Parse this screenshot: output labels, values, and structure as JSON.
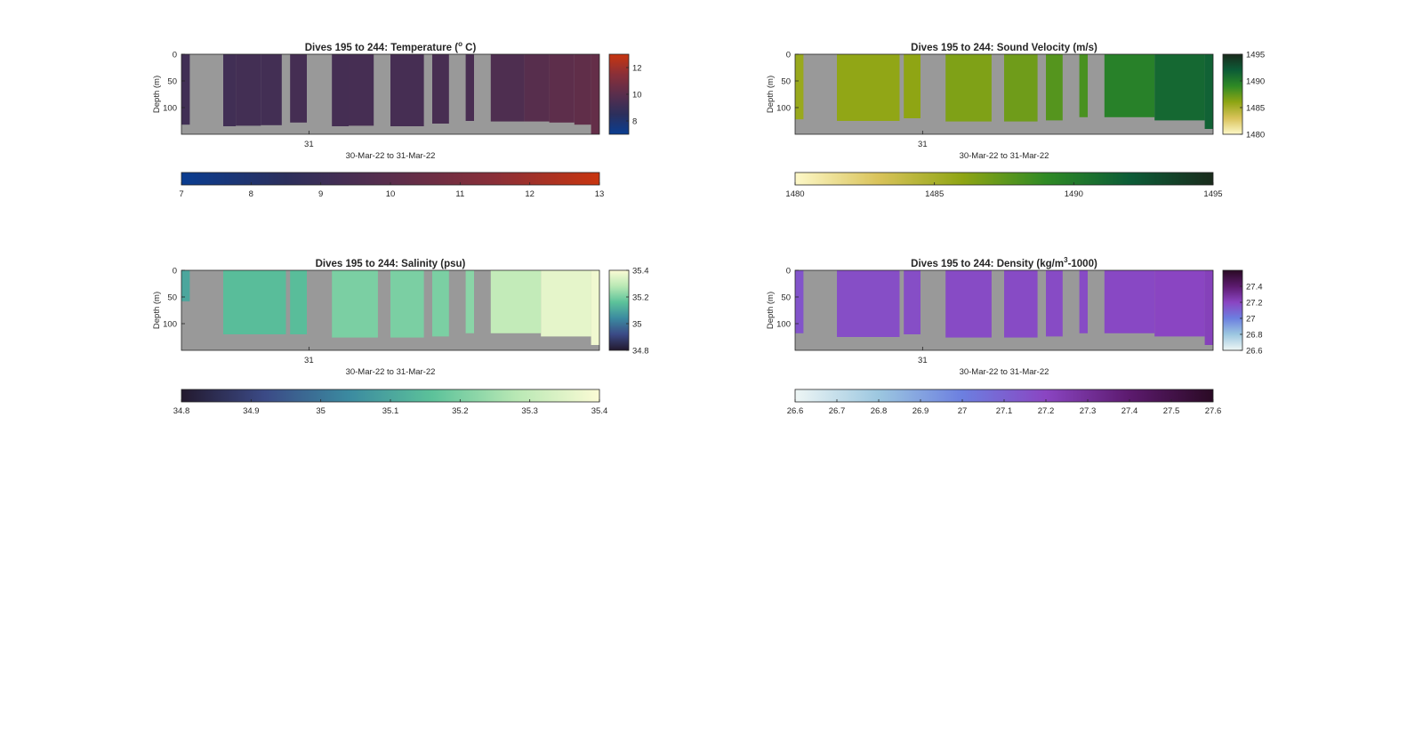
{
  "figure": {
    "panels": [
      {
        "id": "temperature",
        "title_prefix": "Dives 195 to 244: Temperature (",
        "title_sup": "o",
        "title_suffix": " C)",
        "ylabel": "Depth (m)",
        "xlabel": "30-Mar-22 to 31-Mar-22",
        "xtick": "31",
        "yticks": [
          "0",
          "50",
          "100"
        ],
        "colorbar_ticks": [
          "8",
          "10",
          "12"
        ],
        "hbar_ticks": [
          "7",
          "8",
          "9",
          "10",
          "11",
          "12",
          "13"
        ]
      },
      {
        "id": "sound_velocity",
        "title_prefix": "Dives 195 to 244: Sound Velocity (m/s)",
        "title_sup": "",
        "title_suffix": "",
        "ylabel": "Depth (m)",
        "xlabel": "30-Mar-22 to 31-Mar-22",
        "xtick": "31",
        "yticks": [
          "0",
          "50",
          "100"
        ],
        "colorbar_ticks": [
          "1480",
          "1485",
          "1490",
          "1495"
        ],
        "hbar_ticks": [
          "1480",
          "1485",
          "1490",
          "1495"
        ]
      },
      {
        "id": "salinity",
        "title_prefix": "Dives 195 to 244: Salinity (psu)",
        "title_sup": "",
        "title_suffix": "",
        "ylabel": "Depth (m)",
        "xlabel": "30-Mar-22 to 31-Mar-22",
        "xtick": "31",
        "yticks": [
          "0",
          "50",
          "100"
        ],
        "colorbar_ticks": [
          "34.8",
          "35",
          "35.2",
          "35.4"
        ],
        "hbar_ticks": [
          "34.8",
          "34.9",
          "35",
          "35.1",
          "35.2",
          "35.3",
          "35.4"
        ]
      },
      {
        "id": "density",
        "title_prefix": "Dives 195 to 244: Density (kg/m",
        "title_sup": "3",
        "title_suffix": "-1000)",
        "ylabel": "Depth (m)",
        "xlabel": "30-Mar-22 to 31-Mar-22",
        "xtick": "31",
        "yticks": [
          "0",
          "50",
          "100"
        ],
        "colorbar_ticks": [
          "26.6",
          "26.8",
          "27",
          "27.2",
          "27.4"
        ],
        "hbar_ticks": [
          "26.6",
          "26.7",
          "26.8",
          "26.9",
          "27",
          "27.1",
          "27.2",
          "27.3",
          "27.4",
          "27.5",
          "27.6"
        ]
      }
    ]
  },
  "chart_data": [
    {
      "type": "heatmap",
      "title": "Dives 195 to 244: Temperature (o C)",
      "xlabel": "30-Mar-22 to 31-Mar-22",
      "ylabel": "Depth (m)",
      "x_tick_labels": [
        "31"
      ],
      "y_ticks": [
        0,
        50,
        100
      ],
      "ylim": [
        0,
        150
      ],
      "y_reversed": true,
      "clim": [
        7,
        13
      ],
      "colorbar_ticks": [
        8,
        10,
        12
      ],
      "horizontal_colorbar_ticks": [
        7,
        8,
        9,
        10,
        11,
        12,
        13
      ],
      "colormap": [
        "#0a3d91",
        "#2c2f5c",
        "#5a2e4c",
        "#8a2f38",
        "#c8350f"
      ],
      "nodata_color": "#999999",
      "profiles": [
        {
          "start": 0.0,
          "end": 0.02,
          "max_depth": 132,
          "value": 9.2
        },
        {
          "start": 0.1,
          "end": 0.13,
          "max_depth": 135,
          "value": 9.2
        },
        {
          "start": 0.13,
          "end": 0.19,
          "max_depth": 134,
          "value": 9.25
        },
        {
          "start": 0.19,
          "end": 0.24,
          "max_depth": 133,
          "value": 9.25
        },
        {
          "start": 0.26,
          "end": 0.3,
          "max_depth": 128,
          "value": 9.3
        },
        {
          "start": 0.36,
          "end": 0.4,
          "max_depth": 135,
          "value": 9.3
        },
        {
          "start": 0.4,
          "end": 0.46,
          "max_depth": 134,
          "value": 9.35
        },
        {
          "start": 0.5,
          "end": 0.58,
          "max_depth": 135,
          "value": 9.35
        },
        {
          "start": 0.6,
          "end": 0.64,
          "max_depth": 130,
          "value": 9.4
        },
        {
          "start": 0.68,
          "end": 0.7,
          "max_depth": 125,
          "value": 9.45
        },
        {
          "start": 0.74,
          "end": 0.82,
          "max_depth": 126,
          "value": 9.6
        },
        {
          "start": 0.82,
          "end": 0.88,
          "max_depth": 126,
          "value": 9.9
        },
        {
          "start": 0.88,
          "end": 0.94,
          "max_depth": 128,
          "value": 10.1
        },
        {
          "start": 0.94,
          "end": 0.98,
          "max_depth": 132,
          "value": 10.2
        },
        {
          "start": 0.98,
          "end": 1.0,
          "max_depth": 150,
          "value": 10.3
        }
      ]
    },
    {
      "type": "heatmap",
      "title": "Dives 195 to 244: Sound Velocity (m/s)",
      "xlabel": "30-Mar-22 to 31-Mar-22",
      "ylabel": "Depth (m)",
      "x_tick_labels": [
        "31"
      ],
      "y_ticks": [
        0,
        50,
        100
      ],
      "ylim": [
        0,
        150
      ],
      "y_reversed": true,
      "clim": [
        1480,
        1495
      ],
      "colorbar_ticks": [
        1480,
        1485,
        1490,
        1495
      ],
      "horizontal_colorbar_ticks": [
        1480,
        1485,
        1490,
        1495
      ],
      "colormap": [
        "#fdf8c8",
        "#d9c35a",
        "#8fa514",
        "#2f8a25",
        "#0c5c37",
        "#1a2b1c"
      ],
      "nodata_color": "#999999",
      "profiles": [
        {
          "start": 0.0,
          "end": 0.02,
          "max_depth": 122,
          "value": 1485.6
        },
        {
          "start": 0.1,
          "end": 0.25,
          "max_depth": 125,
          "value": 1485.9
        },
        {
          "start": 0.26,
          "end": 0.3,
          "max_depth": 120,
          "value": 1486.0
        },
        {
          "start": 0.36,
          "end": 0.47,
          "max_depth": 126,
          "value": 1486.5
        },
        {
          "start": 0.5,
          "end": 0.58,
          "max_depth": 126,
          "value": 1487.0
        },
        {
          "start": 0.6,
          "end": 0.64,
          "max_depth": 124,
          "value": 1487.8
        },
        {
          "start": 0.68,
          "end": 0.7,
          "max_depth": 118,
          "value": 1488.2
        },
        {
          "start": 0.74,
          "end": 0.86,
          "max_depth": 118,
          "value": 1489.6
        },
        {
          "start": 0.86,
          "end": 0.98,
          "max_depth": 124,
          "value": 1491.2
        },
        {
          "start": 0.98,
          "end": 1.0,
          "max_depth": 140,
          "value": 1491.6
        }
      ]
    },
    {
      "type": "heatmap",
      "title": "Dives 195 to 244: Salinity (psu)",
      "xlabel": "30-Mar-22 to 31-Mar-22",
      "ylabel": "Depth (m)",
      "x_tick_labels": [
        "31"
      ],
      "y_ticks": [
        0,
        50,
        100
      ],
      "ylim": [
        0,
        150
      ],
      "y_reversed": true,
      "clim": [
        34.8,
        35.4
      ],
      "colorbar_ticks": [
        34.8,
        35,
        35.2,
        35.4
      ],
      "horizontal_colorbar_ticks": [
        34.8,
        34.9,
        35,
        35.1,
        35.2,
        35.3,
        35.4
      ],
      "colormap": [
        "#23192e",
        "#3b4a86",
        "#3b8aa0",
        "#5cc29a",
        "#b8e8b4",
        "#fbfbd5"
      ],
      "nodata_color": "#999999",
      "profiles": [
        {
          "start": 0.0,
          "end": 0.02,
          "max_depth": 58,
          "value": 35.1
        },
        {
          "start": 0.1,
          "end": 0.25,
          "max_depth": 120,
          "value": 35.15
        },
        {
          "start": 0.26,
          "end": 0.3,
          "max_depth": 120,
          "value": 35.15
        },
        {
          "start": 0.36,
          "end": 0.47,
          "max_depth": 126,
          "value": 35.2
        },
        {
          "start": 0.5,
          "end": 0.58,
          "max_depth": 126,
          "value": 35.2
        },
        {
          "start": 0.6,
          "end": 0.64,
          "max_depth": 124,
          "value": 35.2
        },
        {
          "start": 0.68,
          "end": 0.7,
          "max_depth": 118,
          "value": 35.22
        },
        {
          "start": 0.74,
          "end": 0.86,
          "max_depth": 118,
          "value": 35.3
        },
        {
          "start": 0.86,
          "end": 0.98,
          "max_depth": 124,
          "value": 35.36
        },
        {
          "start": 0.98,
          "end": 1.0,
          "max_depth": 140,
          "value": 35.38
        }
      ]
    },
    {
      "type": "heatmap",
      "title": "Dives 195 to 244: Density (kg/m3-1000)",
      "xlabel": "30-Mar-22 to 31-Mar-22",
      "ylabel": "Depth (m)",
      "x_tick_labels": [
        "31"
      ],
      "y_ticks": [
        0,
        50,
        100
      ],
      "ylim": [
        0,
        150
      ],
      "y_reversed": true,
      "clim": [
        26.6,
        27.6
      ],
      "colorbar_ticks": [
        26.6,
        26.8,
        27,
        27.2,
        27.4
      ],
      "horizontal_colorbar_ticks": [
        26.6,
        26.7,
        26.8,
        26.9,
        27,
        27.1,
        27.2,
        27.3,
        27.4,
        27.5,
        27.6
      ],
      "colormap": [
        "#eef6f5",
        "#9cc7e0",
        "#6c7fe0",
        "#8a45c2",
        "#5c1a6e",
        "#2a0a24"
      ],
      "nodata_color": "#999999",
      "profiles": [
        {
          "start": 0.0,
          "end": 0.02,
          "max_depth": 118,
          "value": 27.15
        },
        {
          "start": 0.1,
          "end": 0.25,
          "max_depth": 125,
          "value": 27.17
        },
        {
          "start": 0.26,
          "end": 0.3,
          "max_depth": 120,
          "value": 27.17
        },
        {
          "start": 0.36,
          "end": 0.47,
          "max_depth": 126,
          "value": 27.18
        },
        {
          "start": 0.5,
          "end": 0.58,
          "max_depth": 126,
          "value": 27.18
        },
        {
          "start": 0.6,
          "end": 0.64,
          "max_depth": 124,
          "value": 27.18
        },
        {
          "start": 0.68,
          "end": 0.7,
          "max_depth": 118,
          "value": 27.18
        },
        {
          "start": 0.74,
          "end": 0.86,
          "max_depth": 118,
          "value": 27.19
        },
        {
          "start": 0.86,
          "end": 0.98,
          "max_depth": 124,
          "value": 27.2
        },
        {
          "start": 0.98,
          "end": 1.0,
          "max_depth": 140,
          "value": 27.22
        }
      ]
    }
  ]
}
